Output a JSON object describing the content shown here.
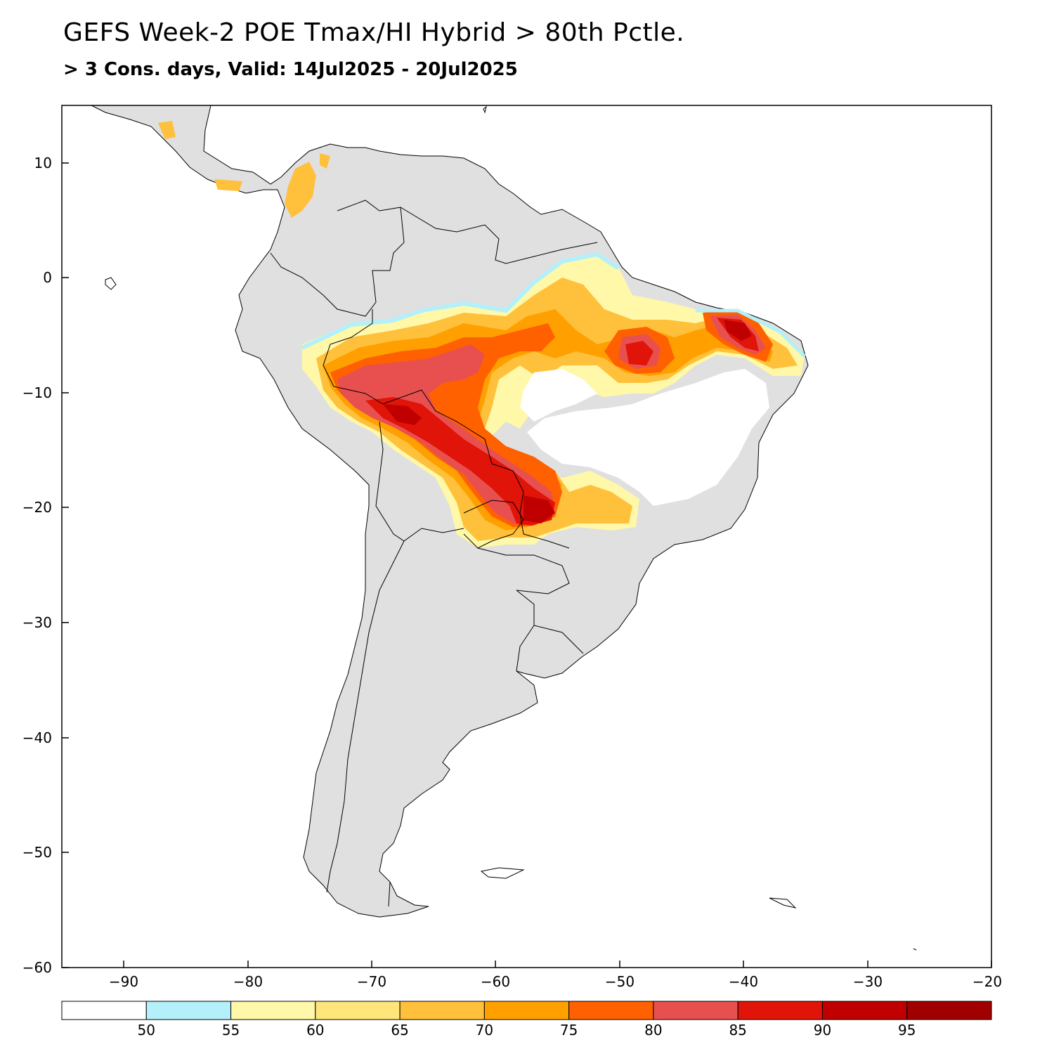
{
  "title": "GEFS Week-2 POE Tmax/HI Hybrid > 80th Pctle.",
  "subtitle": "> 3 Cons. days, Valid: 14Jul2025 - 20Jul2025",
  "map": {
    "lon_range": [
      -95,
      -20
    ],
    "lat_range": [
      -60,
      15
    ],
    "lon_ticks": [
      "−90",
      "−80",
      "−70",
      "−60",
      "−50",
      "−40",
      "−30",
      "−20"
    ],
    "lat_ticks": [
      "10",
      "0",
      "−10",
      "−20",
      "−30",
      "−40",
      "−50",
      "−60"
    ]
  },
  "legend": {
    "labels": [
      "50",
      "55",
      "60",
      "65",
      "70",
      "75",
      "80",
      "85",
      "90",
      "95"
    ],
    "colors": [
      "#ffffff",
      "#b4f0fa",
      "#fff8a8",
      "#ffe67a",
      "#ffc03c",
      "#ffa000",
      "#ff6000",
      "#e85050",
      "#e01408",
      "#c00000",
      "#a00000"
    ]
  },
  "land_color": "#e0e0e0"
}
